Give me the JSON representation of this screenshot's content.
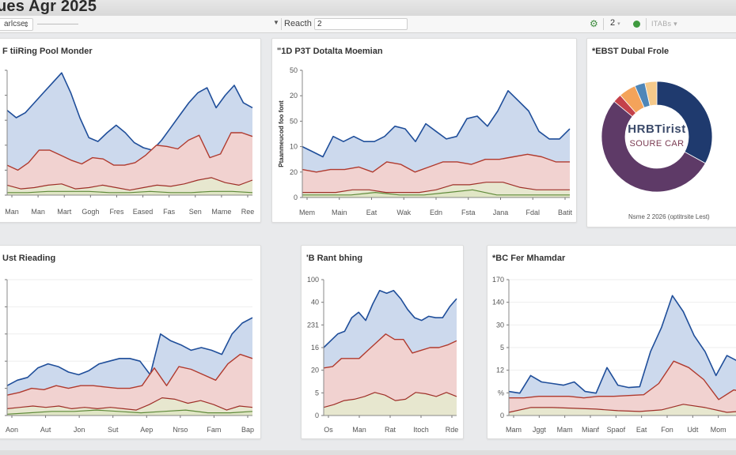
{
  "header": {
    "title": "ues Agr 2025"
  },
  "toolbar": {
    "view_select": "arlcse",
    "search_label": "Reacth",
    "search_value": "2",
    "count_select": "2",
    "items_select": "ITABs",
    "icons": {
      "gear": "gear-icon",
      "status": "status-dot-icon"
    }
  },
  "colors": {
    "blue_line": "#1f4e9a",
    "blue_fill": "#c9d7ec",
    "red_line": "#b03a2e",
    "red_fill": "#f2d2cf",
    "olive_fill": "#e6e8cf",
    "green_line": "#5f8a3a",
    "navy": "#1f3a6e"
  },
  "chart_data": [
    {
      "type": "area",
      "title": "F tiiRing Pool Monder",
      "xlabel": "",
      "ylabel": "",
      "categories": [
        "Man",
        "Man",
        "Mart",
        "Gogh",
        "Fres",
        "Eased",
        "Fas",
        "Sen",
        "Mame",
        "Ree"
      ],
      "y_ticks": [
        "",
        "",
        "",
        "",
        "",
        ""
      ],
      "ylim": [
        0,
        100
      ],
      "grid": false,
      "series": [
        {
          "name": "blue",
          "values": [
            68,
            62,
            66,
            74,
            82,
            90,
            98,
            82,
            62,
            46,
            43,
            50,
            56,
            50,
            42,
            38,
            36,
            44,
            54,
            64,
            74,
            82,
            86,
            70,
            80,
            88,
            74,
            70
          ]
        },
        {
          "name": "red",
          "values": [
            24,
            20,
            26,
            36,
            36,
            32,
            28,
            25,
            30,
            29,
            24,
            24,
            26,
            32,
            40,
            39,
            37,
            44,
            48,
            30,
            33,
            50,
            50,
            47
          ]
        },
        {
          "name": "dark-red",
          "values": [
            8,
            5,
            6,
            8,
            9,
            5,
            6,
            8,
            6,
            4,
            6,
            8,
            7,
            9,
            12,
            14,
            10,
            8,
            12
          ]
        },
        {
          "name": "green",
          "values": [
            2,
            2,
            3,
            3,
            3,
            2,
            2,
            3,
            2,
            2,
            3,
            3,
            2
          ]
        }
      ]
    },
    {
      "type": "area",
      "title": "\"1D P3T Dotalta Moemian",
      "ylabel": "Ptaanmeucod foo font",
      "categories": [
        "Mem",
        "Main",
        "Eat",
        "Wak",
        "Edn",
        "Fsta",
        "Jana",
        "Fdal",
        "Batit"
      ],
      "y_ticks": [
        "0",
        "20",
        "10",
        "50",
        "20",
        "50"
      ],
      "ylim": [
        0,
        50
      ],
      "grid": false,
      "series": [
        {
          "name": "blue",
          "values": [
            20,
            18,
            16,
            24,
            22,
            24,
            22,
            22,
            24,
            28,
            27,
            22,
            29,
            26,
            23,
            24,
            31,
            32,
            28,
            34,
            42,
            38,
            34,
            26,
            23,
            23,
            27
          ]
        },
        {
          "name": "red",
          "values": [
            11,
            10,
            11,
            11,
            12,
            10,
            14,
            13,
            10,
            12,
            14,
            14,
            13,
            15,
            15,
            16,
            17,
            16,
            14,
            14
          ]
        },
        {
          "name": "dark-red",
          "values": [
            2,
            2,
            2,
            3,
            3,
            2,
            2,
            2,
            3,
            5,
            5,
            6,
            6,
            4,
            3,
            3,
            3
          ]
        },
        {
          "name": "green",
          "values": [
            1,
            1,
            1,
            2,
            1,
            1,
            2,
            3,
            1,
            1,
            1,
            1
          ]
        }
      ]
    },
    {
      "type": "pie",
      "title": "*EBST Dubal Frole",
      "center_text": [
        "HRBTirist",
        "SOURE CAR"
      ],
      "footnote": "Nsme 2 2026 (optitrsite Lest)",
      "slices": [
        {
          "name": "navy",
          "value": 33,
          "color": "#1f3a6e"
        },
        {
          "name": "purple",
          "value": 53,
          "color": "#5e3a67"
        },
        {
          "name": "red",
          "value": 2.5,
          "color": "#c4414a"
        },
        {
          "name": "orange",
          "value": 5,
          "color": "#f4a35a"
        },
        {
          "name": "steel-blue",
          "value": 3,
          "color": "#4e86b8"
        },
        {
          "name": "sand",
          "value": 3.5,
          "color": "#f5c98a"
        }
      ]
    },
    {
      "type": "area",
      "title": "Ust Rieading",
      "categories": [
        "Aon",
        "Aut",
        "Jon",
        "Sut",
        "Aep",
        "Nrso",
        "Fam",
        "Bap"
      ],
      "y_ticks": [
        "",
        "",
        "",
        "",
        "",
        ""
      ],
      "ylim": [
        0,
        100
      ],
      "grid": true,
      "series": [
        {
          "name": "blue",
          "values": [
            22,
            26,
            28,
            35,
            38,
            36,
            32,
            30,
            33,
            38,
            40,
            42,
            42,
            40,
            30,
            60,
            55,
            52,
            48,
            50,
            48,
            45,
            60,
            68,
            72
          ]
        },
        {
          "name": "red",
          "values": [
            15,
            17,
            20,
            19,
            22,
            20,
            22,
            22,
            21,
            20,
            20,
            22,
            35,
            22,
            36,
            34,
            30,
            26,
            38,
            45,
            42
          ]
        },
        {
          "name": "dark-red",
          "values": [
            5,
            6,
            7,
            6,
            7,
            5,
            6,
            5,
            6,
            5,
            4,
            8,
            13,
            12,
            9,
            11,
            8,
            4,
            7,
            6
          ]
        },
        {
          "name": "green",
          "values": [
            1,
            2,
            3,
            3,
            4,
            3,
            2,
            3,
            4,
            2,
            2,
            3
          ]
        }
      ]
    },
    {
      "type": "area",
      "title": "'B Rant bhing",
      "categories": [
        "Os",
        "Man",
        "Rat",
        "Itoch",
        "Rde"
      ],
      "y_ticks": [
        "0",
        "5",
        "20",
        "16",
        "231",
        "40",
        "100"
      ],
      "ylim": [
        0,
        100
      ],
      "grid": false,
      "series": [
        {
          "name": "blue",
          "values": [
            50,
            55,
            60,
            62,
            72,
            76,
            70,
            82,
            92,
            90,
            92,
            86,
            78,
            72,
            70,
            73,
            72,
            72,
            80,
            86
          ]
        },
        {
          "name": "red",
          "values": [
            35,
            36,
            42,
            42,
            42,
            48,
            54,
            60,
            56,
            56,
            46,
            48,
            50,
            50,
            52,
            55
          ]
        },
        {
          "name": "dark-red",
          "values": [
            6,
            8,
            11,
            12,
            14,
            17,
            15,
            11,
            12,
            17,
            16,
            14,
            17,
            14
          ]
        }
      ]
    },
    {
      "type": "area",
      "title": "*BC Fer Mhamdar",
      "categories": [
        "Mam",
        "Jggt",
        "Mam",
        "Mianf",
        "Spaof",
        "Eat",
        "Fon",
        "Udt",
        "Mom",
        "F"
      ],
      "y_ticks": [
        "0",
        "%",
        "12",
        "5",
        "30",
        "140",
        "170"
      ],
      "ylim": [
        0,
        170
      ],
      "grid": true,
      "series": [
        {
          "name": "blue",
          "values": [
            30,
            28,
            50,
            42,
            40,
            38,
            42,
            30,
            28,
            60,
            38,
            35,
            36,
            80,
            110,
            150,
            130,
            100,
            80,
            50,
            75,
            68,
            72
          ]
        },
        {
          "name": "red",
          "values": [
            22,
            22,
            24,
            24,
            24,
            22,
            24,
            24,
            25,
            26,
            40,
            68,
            60,
            45,
            20,
            32,
            28
          ]
        },
        {
          "name": "dark-red",
          "values": [
            4,
            10,
            10,
            9,
            8,
            6,
            5,
            7,
            14,
            10,
            4,
            6
          ]
        }
      ]
    }
  ]
}
